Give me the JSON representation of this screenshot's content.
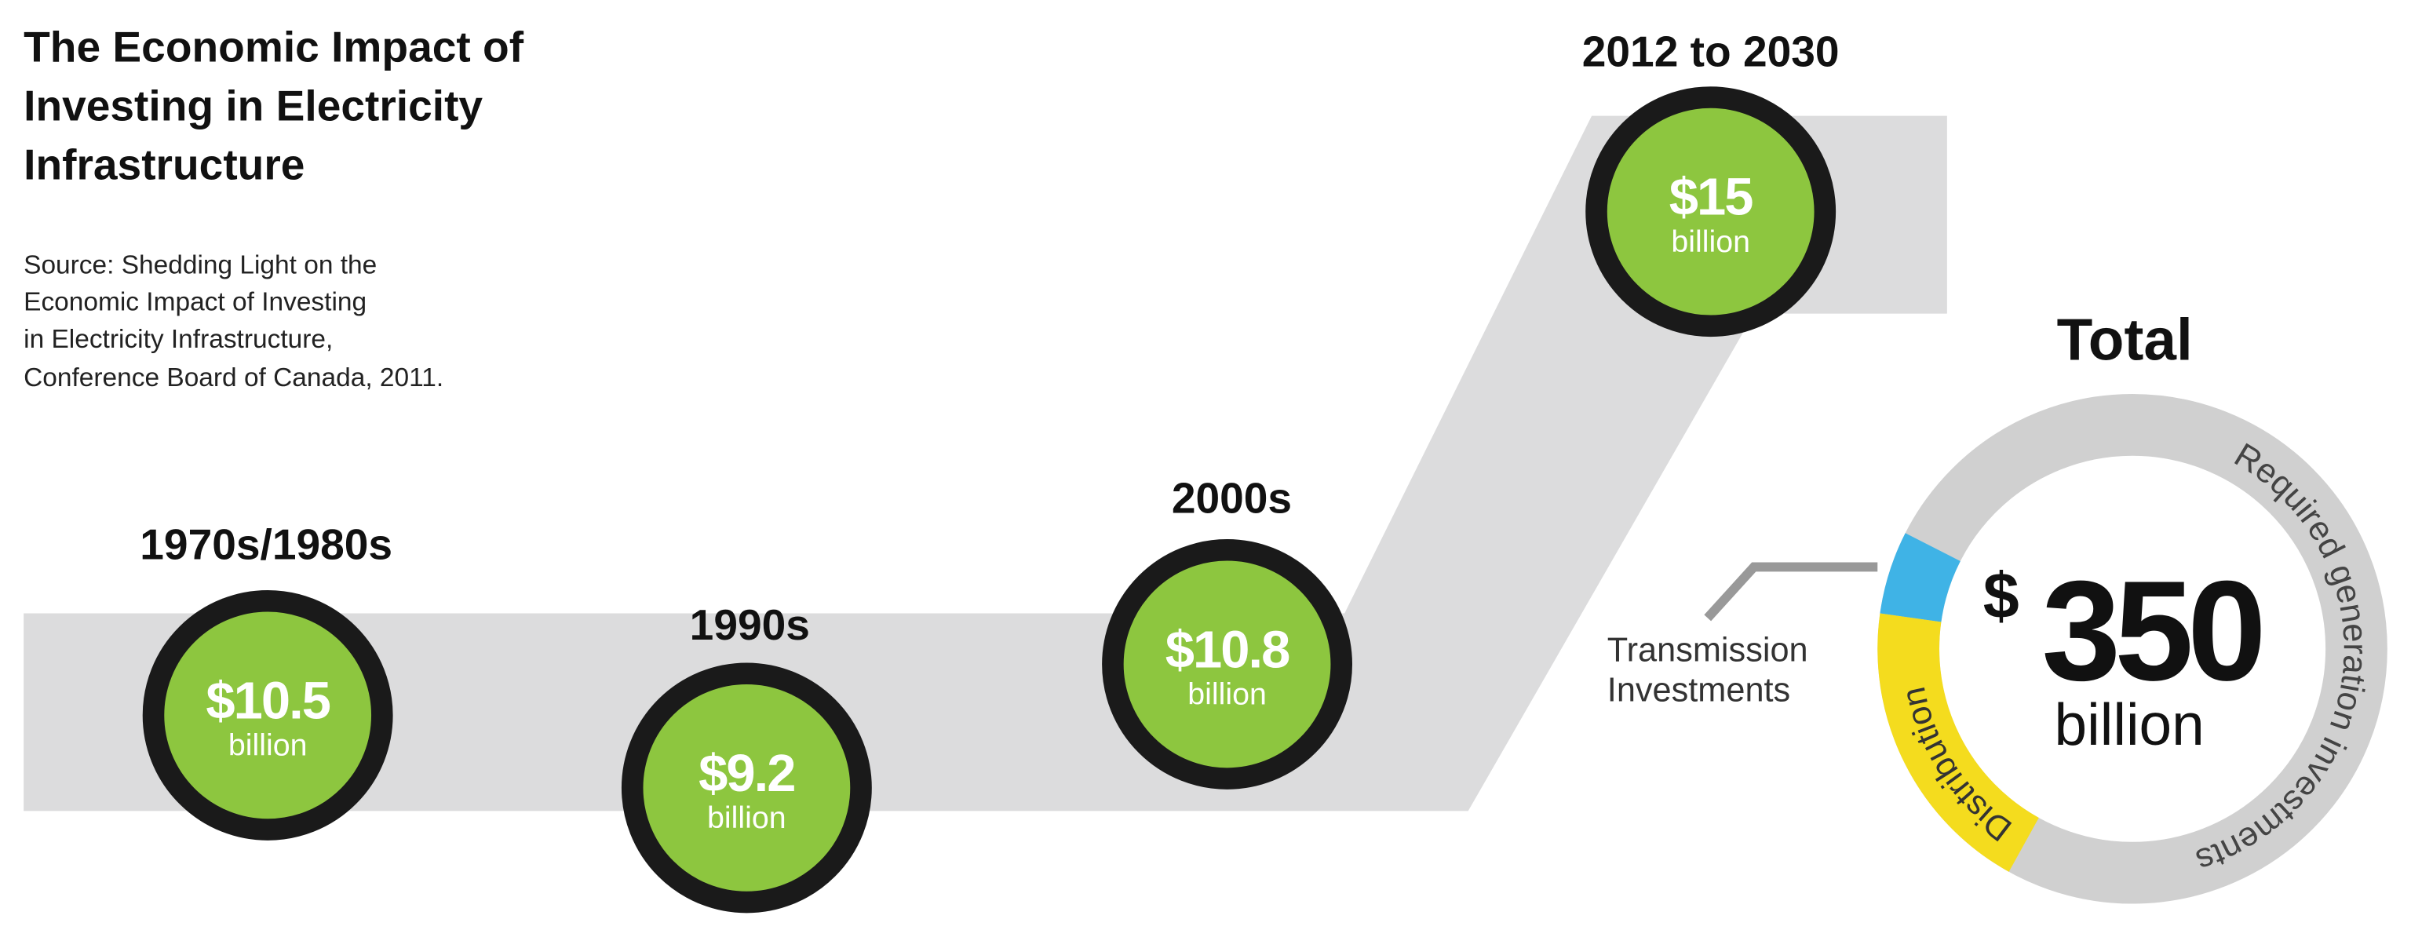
{
  "title": [
    "The Economic Impact of",
    "Investing in Electricity",
    "Infrastructure"
  ],
  "source": [
    "Source: Shedding Light on the",
    "Economic Impact of Investing",
    "in Electricity Infrastructure,",
    "Conference Board of Canada, 2011."
  ],
  "periods": [
    {
      "label": "1970s/1980s",
      "amount": "$10.5",
      "unit": "billion"
    },
    {
      "label": "1990s",
      "amount": "$9.2",
      "unit": "billion"
    },
    {
      "label": "2000s",
      "amount": "$10.8",
      "unit": "billion"
    },
    {
      "label": "2012 to 2030",
      "amount": "$15",
      "unit": "billion"
    }
  ],
  "total": {
    "heading": "Total",
    "currency": "$",
    "amount": "350",
    "unit": "billion"
  },
  "segments": {
    "generation": "Required generation investments",
    "distribution": "Distribution",
    "transmission": [
      "Transmission",
      "Investments"
    ]
  }
}
